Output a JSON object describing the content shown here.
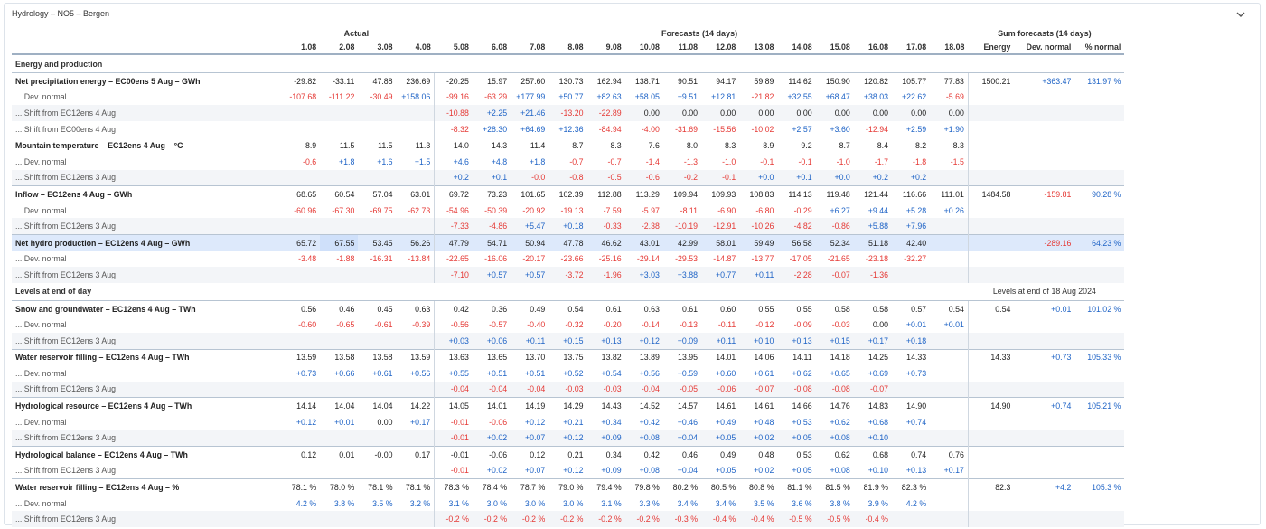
{
  "panel_title": "Hydrology – NO5 – Bergen",
  "groups": {
    "actual": "Actual",
    "forecasts": "Forecasts (14 days)",
    "sum": "Sum forecasts (14 days)"
  },
  "dates": [
    "1.08",
    "2.08",
    "3.08",
    "4.08",
    "5.08",
    "6.08",
    "7.08",
    "8.08",
    "9.08",
    "10.08",
    "11.08",
    "12.08",
    "13.08",
    "14.08",
    "15.08",
    "16.08",
    "17.08",
    "18.08"
  ],
  "sum_headers": [
    "Energy",
    "Dev. normal",
    "% normal"
  ],
  "sections": {
    "energy": "Energy and production",
    "levels": "Levels at end of day",
    "levels_note": "Levels at end of 18 Aug 2024"
  },
  "rows": [
    {
      "type": "sec",
      "key": "energy"
    },
    {
      "type": "main",
      "label": "Net precipitation energy – EC00ens 5 Aug – GWh",
      "vals": [
        "-29.82",
        "-33.11",
        "47.88",
        "236.69",
        "-20.25",
        "15.97",
        "257.60",
        "130.73",
        "162.94",
        "138.71",
        "90.51",
        "94.17",
        "59.89",
        "114.62",
        "150.90",
        "120.82",
        "105.77",
        "77.83"
      ],
      "sum": [
        "1500.21",
        "+363.47",
        "131.97 %"
      ]
    },
    {
      "type": "sub",
      "label": "... Dev. normal",
      "vals": [
        "-107.68",
        "-111.22",
        "-30.49",
        "+158.06",
        "-99.16",
        "-63.29",
        "+177.99",
        "+50.77",
        "+82.63",
        "+58.05",
        "+9.51",
        "+12.81",
        "-21.82",
        "+32.55",
        "+68.47",
        "+38.03",
        "+22.62",
        "-5.69"
      ],
      "sum": [
        "",
        "",
        ""
      ]
    },
    {
      "type": "sub",
      "label": "... Shift from EC12ens 4 Aug",
      "vals": [
        "",
        "",
        "",
        "",
        "-10.88",
        "+2.25",
        "+21.46",
        "-13.20",
        "-22.89",
        "0.00",
        "0.00",
        "0.00",
        "0.00",
        "0.00",
        "0.00",
        "0.00",
        "0.00",
        "0.00"
      ],
      "sum": [
        "",
        "",
        ""
      ]
    },
    {
      "type": "sub",
      "label": "... Shift from EC00ens 4 Aug",
      "vals": [
        "",
        "",
        "",
        "",
        "-8.32",
        "+28.30",
        "+64.69",
        "+12.36",
        "-84.94",
        "-4.00",
        "-31.69",
        "-15.56",
        "-10.02",
        "+2.57",
        "+3.60",
        "-12.94",
        "+2.59",
        "+1.90"
      ],
      "sum": [
        "",
        "",
        ""
      ]
    },
    {
      "type": "main",
      "label": "Mountain temperature – EC12ens 4 Aug – °C",
      "vals": [
        "8.9",
        "11.5",
        "11.5",
        "11.3",
        "14.0",
        "14.3",
        "11.4",
        "8.7",
        "8.3",
        "7.6",
        "8.0",
        "8.3",
        "8.9",
        "9.2",
        "8.7",
        "8.4",
        "8.2",
        "8.3"
      ],
      "sum": [
        "",
        "",
        ""
      ]
    },
    {
      "type": "sub",
      "label": "... Dev. normal",
      "vals": [
        "-0.6",
        "+1.8",
        "+1.6",
        "+1.5",
        "+4.6",
        "+4.8",
        "+1.8",
        "-0.7",
        "-0.7",
        "-1.4",
        "-1.3",
        "-1.0",
        "-0.1",
        "-0.1",
        "-1.0",
        "-1.7",
        "-1.8",
        "-1.5"
      ],
      "sum": [
        "",
        "",
        ""
      ]
    },
    {
      "type": "sub",
      "label": "... Shift from EC12ens 3 Aug",
      "vals": [
        "",
        "",
        "",
        "",
        "+0.2",
        "+0.1",
        "-0.0",
        "-0.8",
        "-0.5",
        "-0.6",
        "-0.2",
        "-0.1",
        "+0.0",
        "+0.1",
        "+0.0",
        "+0.2",
        "+0.2",
        ""
      ],
      "sum": [
        "",
        "",
        ""
      ]
    },
    {
      "type": "main",
      "label": "Inflow – EC12ens 4 Aug – GWh",
      "vals": [
        "68.65",
        "60.54",
        "57.04",
        "63.01",
        "69.72",
        "73.23",
        "101.65",
        "102.39",
        "112.88",
        "113.29",
        "109.94",
        "109.93",
        "108.83",
        "114.13",
        "119.48",
        "121.44",
        "116.66",
        "111.01"
      ],
      "sum": [
        "1484.58",
        "-159.81",
        "90.28 %"
      ]
    },
    {
      "type": "sub",
      "label": "... Dev. normal",
      "vals": [
        "-60.96",
        "-67.30",
        "-69.75",
        "-62.73",
        "-54.96",
        "-50.39",
        "-20.92",
        "-19.13",
        "-7.59",
        "-5.97",
        "-8.11",
        "-6.90",
        "-6.80",
        "-0.29",
        "+6.27",
        "+9.44",
        "+5.28",
        "+0.26"
      ],
      "sum": [
        "",
        "",
        ""
      ]
    },
    {
      "type": "sub",
      "label": "... Shift from EC12ens 3 Aug",
      "vals": [
        "",
        "",
        "",
        "",
        "-7.33",
        "-4.86",
        "+5.47",
        "+0.18",
        "-0.33",
        "-2.38",
        "-10.19",
        "-12.91",
        "-10.26",
        "-4.82",
        "-0.86",
        "+5.88",
        "+7.96",
        ""
      ],
      "sum": [
        "",
        "",
        ""
      ]
    },
    {
      "type": "main",
      "hl": true,
      "label": "Net hydro production – EC12ens 4 Aug – GWh",
      "vals": [
        "65.72",
        "67.55",
        "53.45",
        "56.26",
        "47.79",
        "54.71",
        "50.94",
        "47.78",
        "46.62",
        "43.01",
        "42.99",
        "58.01",
        "59.49",
        "56.58",
        "52.34",
        "51.18",
        "42.40",
        ""
      ],
      "sum": [
        "",
        "-289.16",
        "64.23 %"
      ]
    },
    {
      "type": "sub",
      "label": "... Dev. normal",
      "vals": [
        "-3.48",
        "-1.88",
        "-16.31",
        "-13.84",
        "-22.65",
        "-16.06",
        "-20.17",
        "-23.66",
        "-25.16",
        "-29.14",
        "-29.53",
        "-14.87",
        "-13.77",
        "-17.05",
        "-21.65",
        "-23.18",
        "-32.27",
        ""
      ],
      "sum": [
        "",
        "",
        ""
      ]
    },
    {
      "type": "sub",
      "label": "... Shift from EC12ens 3 Aug",
      "vals": [
        "",
        "",
        "",
        "",
        "-7.10",
        "+0.57",
        "+0.57",
        "-3.72",
        "-1.96",
        "+3.03",
        "+3.88",
        "+0.77",
        "+0.11",
        "-2.28",
        "-0.07",
        "-1.36",
        "",
        ""
      ],
      "sum": [
        "",
        "",
        ""
      ]
    },
    {
      "type": "sec",
      "key": "levels"
    },
    {
      "type": "main",
      "label": "Snow and groundwater – EC12ens 4 Aug – TWh",
      "vals": [
        "0.56",
        "0.46",
        "0.45",
        "0.63",
        "0.42",
        "0.36",
        "0.49",
        "0.54",
        "0.61",
        "0.63",
        "0.61",
        "0.60",
        "0.55",
        "0.55",
        "0.58",
        "0.58",
        "0.57",
        "0.54"
      ],
      "sum": [
        "0.54",
        "+0.01",
        "101.02 %"
      ]
    },
    {
      "type": "sub",
      "label": "... Dev. normal",
      "vals": [
        "-0.60",
        "-0.65",
        "-0.61",
        "-0.39",
        "-0.56",
        "-0.57",
        "-0.40",
        "-0.32",
        "-0.20",
        "-0.14",
        "-0.13",
        "-0.11",
        "-0.12",
        "-0.09",
        "-0.03",
        "0.00",
        "+0.01",
        "+0.01"
      ],
      "sum": [
        "",
        "",
        ""
      ]
    },
    {
      "type": "sub",
      "label": "... Shift from EC12ens 3 Aug",
      "vals": [
        "",
        "",
        "",
        "",
        "+0.03",
        "+0.06",
        "+0.11",
        "+0.15",
        "+0.13",
        "+0.12",
        "+0.09",
        "+0.11",
        "+0.10",
        "+0.13",
        "+0.15",
        "+0.17",
        "+0.18",
        ""
      ],
      "sum": [
        "",
        "",
        ""
      ]
    },
    {
      "type": "main",
      "label": "Water reservoir filling – EC12ens 4 Aug – TWh",
      "vals": [
        "13.59",
        "13.58",
        "13.58",
        "13.59",
        "13.63",
        "13.65",
        "13.70",
        "13.75",
        "13.82",
        "13.89",
        "13.95",
        "14.01",
        "14.06",
        "14.11",
        "14.18",
        "14.25",
        "14.33",
        ""
      ],
      "sum": [
        "14.33",
        "+0.73",
        "105.33 %"
      ]
    },
    {
      "type": "sub",
      "label": "... Dev. normal",
      "vals": [
        "+0.73",
        "+0.66",
        "+0.61",
        "+0.56",
        "+0.55",
        "+0.51",
        "+0.51",
        "+0.52",
        "+0.54",
        "+0.56",
        "+0.59",
        "+0.60",
        "+0.61",
        "+0.62",
        "+0.65",
        "+0.69",
        "+0.73",
        ""
      ],
      "sum": [
        "",
        "",
        ""
      ]
    },
    {
      "type": "sub",
      "label": "... Shift from EC12ens 3 Aug",
      "vals": [
        "",
        "",
        "",
        "",
        "-0.04",
        "-0.04",
        "-0.04",
        "-0.03",
        "-0.03",
        "-0.04",
        "-0.05",
        "-0.06",
        "-0.07",
        "-0.08",
        "-0.08",
        "-0.07",
        "",
        ""
      ],
      "sum": [
        "",
        "",
        ""
      ]
    },
    {
      "type": "main",
      "label": "Hydrological resource – EC12ens 4 Aug – TWh",
      "vals": [
        "14.14",
        "14.04",
        "14.04",
        "14.22",
        "14.05",
        "14.01",
        "14.19",
        "14.29",
        "14.43",
        "14.52",
        "14.57",
        "14.61",
        "14.61",
        "14.66",
        "14.76",
        "14.83",
        "14.90",
        ""
      ],
      "sum": [
        "14.90",
        "+0.74",
        "105.21 %"
      ]
    },
    {
      "type": "sub",
      "label": "... Dev. normal",
      "vals": [
        "+0.12",
        "+0.01",
        "0.00",
        "+0.17",
        "-0.01",
        "-0.06",
        "+0.12",
        "+0.21",
        "+0.34",
        "+0.42",
        "+0.46",
        "+0.49",
        "+0.48",
        "+0.53",
        "+0.62",
        "+0.68",
        "+0.74",
        ""
      ],
      "sum": [
        "",
        "",
        ""
      ]
    },
    {
      "type": "sub",
      "label": "... Shift from EC12ens 3 Aug",
      "vals": [
        "",
        "",
        "",
        "",
        "-0.01",
        "+0.02",
        "+0.07",
        "+0.12",
        "+0.09",
        "+0.08",
        "+0.04",
        "+0.05",
        "+0.02",
        "+0.05",
        "+0.08",
        "+0.10",
        "",
        ""
      ],
      "sum": [
        "",
        "",
        ""
      ]
    },
    {
      "type": "main",
      "label": "Hydrological balance – EC12ens 4 Aug – TWh",
      "vals": [
        "0.12",
        "0.01",
        "-0.00",
        "0.17",
        "-0.01",
        "-0.06",
        "0.12",
        "0.21",
        "0.34",
        "0.42",
        "0.46",
        "0.49",
        "0.48",
        "0.53",
        "0.62",
        "0.68",
        "0.74",
        "0.76"
      ],
      "sum": [
        "",
        "",
        ""
      ]
    },
    {
      "type": "sub",
      "label": "... Shift from EC12ens 3 Aug",
      "vals": [
        "",
        "",
        "",
        "",
        "-0.01",
        "+0.02",
        "+0.07",
        "+0.12",
        "+0.09",
        "+0.08",
        "+0.04",
        "+0.05",
        "+0.02",
        "+0.05",
        "+0.08",
        "+0.10",
        "+0.13",
        "+0.17"
      ],
      "sum": [
        "",
        "",
        ""
      ]
    },
    {
      "type": "main",
      "label": "Water reservoir filling – EC12ens 4 Aug – %",
      "vals": [
        "78.1 %",
        "78.0 %",
        "78.1 %",
        "78.1 %",
        "78.3 %",
        "78.4 %",
        "78.7 %",
        "79.0 %",
        "79.4 %",
        "79.8 %",
        "80.2 %",
        "80.5 %",
        "80.8 %",
        "81.1 %",
        "81.5 %",
        "81.9 %",
        "82.3 %",
        ""
      ],
      "sum": [
        "82.3",
        "+4.2",
        "105.3 %"
      ]
    },
    {
      "type": "sub",
      "label": "... Dev. normal",
      "vals": [
        "4.2 %",
        "3.8 %",
        "3.5 %",
        "3.2 %",
        "3.1 %",
        "3.0 %",
        "3.0 %",
        "3.0 %",
        "3.1 %",
        "3.3 %",
        "3.4 %",
        "3.4 %",
        "3.5 %",
        "3.6 %",
        "3.8 %",
        "3.9 %",
        "4.2 %",
        ""
      ],
      "sum": [
        "",
        "",
        ""
      ]
    },
    {
      "type": "sub",
      "label": "... Shift from EC12ens 3 Aug",
      "vals": [
        "",
        "",
        "",
        "",
        "-0.2 %",
        "-0.2 %",
        "-0.2 %",
        "-0.2 %",
        "-0.2 %",
        "-0.2 %",
        "-0.3 %",
        "-0.4 %",
        "-0.4 %",
        "-0.5 %",
        "-0.5 %",
        "-0.4 %",
        "",
        ""
      ],
      "sum": [
        "",
        "",
        ""
      ]
    }
  ],
  "colors": {
    "negative": "#e53935",
    "positive": "#1e63c6",
    "highlight": "#dde9fb"
  }
}
